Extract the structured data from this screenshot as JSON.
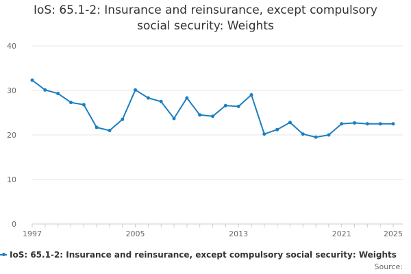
{
  "chart_data": {
    "type": "line",
    "title": "IoS: 65.1-2: Insurance and reinsurance, except compulsory social security: Weights",
    "title_lines": [
      "IoS: 65.1-2: Insurance and reinsurance, except compulsory",
      "social security: Weights"
    ],
    "xlabel": "",
    "ylabel": "",
    "x": [
      1997,
      1998,
      1999,
      2000,
      2001,
      2002,
      2003,
      2004,
      2005,
      2006,
      2007,
      2008,
      2009,
      2010,
      2011,
      2012,
      2013,
      2014,
      2015,
      2016,
      2017,
      2018,
      2019,
      2020,
      2021,
      2022,
      2023,
      2024,
      2025
    ],
    "x_tick_labels": [
      "1997",
      "2005",
      "2013",
      "2021",
      "2025"
    ],
    "y_tick_labels": [
      "0",
      "10",
      "20",
      "30",
      "40"
    ],
    "xlim": [
      1997,
      2025
    ],
    "ylim": [
      0,
      40
    ],
    "grid": "horizontal",
    "legend_position": "bottom",
    "series": [
      {
        "name": "IoS: 65.1-2: Insurance and reinsurance, except compulsory social security: Weights",
        "color": "#1a7fc1",
        "values": [
          32.3,
          30.1,
          29.3,
          27.3,
          26.8,
          21.7,
          21.0,
          23.5,
          30.1,
          28.3,
          27.5,
          23.7,
          28.3,
          24.5,
          24.2,
          26.6,
          26.4,
          29.0,
          20.2,
          21.2,
          22.8,
          20.2,
          19.5,
          20.0,
          22.5,
          22.7,
          22.5,
          22.5,
          22.5
        ]
      }
    ]
  },
  "credit": "Source:"
}
